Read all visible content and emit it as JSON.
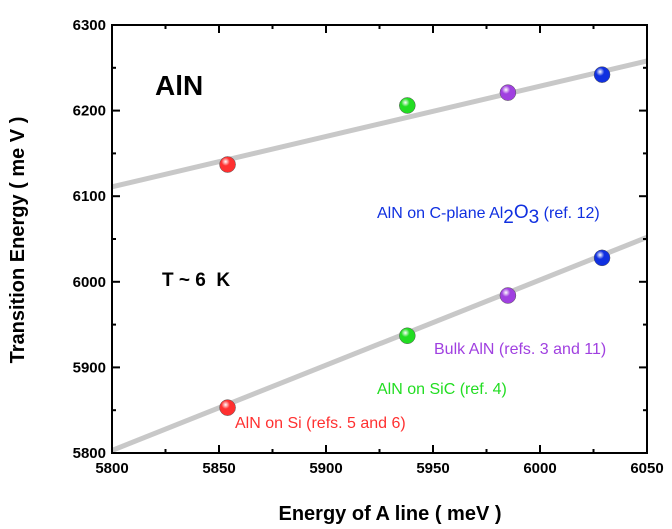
{
  "chart_data": {
    "type": "scatter",
    "xlabel": "Energy of A line ( meV )",
    "ylabel": "Transition Energy ( me V )",
    "xlim": [
      5800,
      6050
    ],
    "ylim": [
      5800,
      6300
    ],
    "x_ticks": [
      "5800",
      "5850",
      "5900",
      "5950",
      "6000",
      "6050"
    ],
    "y_ticks": [
      "5800",
      "5900",
      "6000",
      "6100",
      "6200",
      "6300"
    ],
    "grid": false,
    "fit_lines": [
      {
        "x": [
          5800,
          6050
        ],
        "y": [
          6111,
          6258
        ],
        "color": "#c8c8c8"
      },
      {
        "x": [
          5800,
          6050
        ],
        "y": [
          5803,
          6052
        ],
        "color": "#c8c8c8"
      }
    ],
    "points": [
      {
        "x": 5854,
        "y": 6137,
        "color": "#ff3030"
      },
      {
        "x": 5938,
        "y": 6206,
        "color": "#22dd22"
      },
      {
        "x": 5985,
        "y": 6221,
        "color": "#a040e0"
      },
      {
        "x": 6029,
        "y": 6242,
        "color": "#1030e0"
      },
      {
        "x": 5854,
        "y": 5853,
        "color": "#ff3030"
      },
      {
        "x": 5938,
        "y": 5937,
        "color": "#22dd22"
      },
      {
        "x": 5985,
        "y": 5984,
        "color": "#a040e0"
      },
      {
        "x": 6029,
        "y": 6028,
        "color": "#1030e0"
      }
    ],
    "annotations": {
      "material": "AlN",
      "temperature": "T ~ 6  K",
      "sapphire_prefix": "AlN on C-plane Al",
      "sapphire_sub1": "2",
      "sapphire_mid": "O",
      "sapphire_sub2": "3",
      "sapphire_suffix": " (ref. 12)",
      "bulk": "Bulk AlN (refs. 3 and 11)",
      "sic": "AlN on SiC (ref. 4)",
      "si": "AlN on Si (refs. 5 and 6)"
    },
    "colors": {
      "si": "#ff3030",
      "sic": "#22dd22",
      "bulk": "#a040e0",
      "sapphire": "#1030e0"
    }
  }
}
